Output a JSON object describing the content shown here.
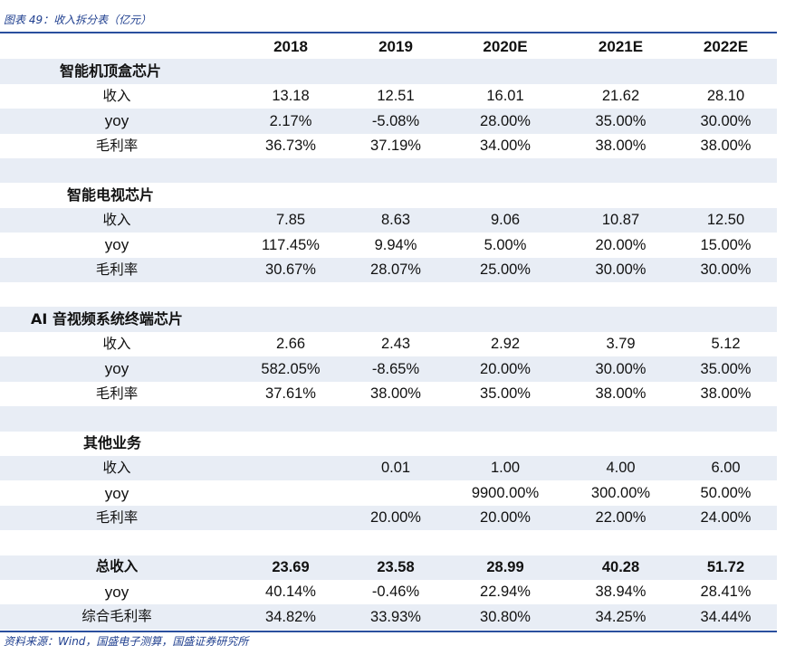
{
  "caption": "图表 49：收入拆分表（亿元）",
  "columns": [
    "",
    "2018",
    "2019",
    "2020E",
    "2021E",
    "2022E"
  ],
  "rows": [
    {
      "type": "section",
      "label": "智能机顶盒芯片",
      "values": [
        "",
        "",
        "",
        "",
        ""
      ]
    },
    {
      "type": "data",
      "label": "收入",
      "values": [
        "13.18",
        "12.51",
        "16.01",
        "21.62",
        "28.10"
      ]
    },
    {
      "type": "data",
      "label": "yoy",
      "values": [
        "2.17%",
        "-5.08%",
        "28.00%",
        "35.00%",
        "30.00%"
      ]
    },
    {
      "type": "data",
      "label": "毛利率",
      "values": [
        "36.73%",
        "37.19%",
        "34.00%",
        "38.00%",
        "38.00%"
      ]
    },
    {
      "type": "spacer",
      "label": "",
      "values": [
        "",
        "",
        "",
        "",
        ""
      ]
    },
    {
      "type": "section",
      "label": "智能电视芯片",
      "values": [
        "",
        "",
        "",
        "",
        ""
      ]
    },
    {
      "type": "data",
      "label": "收入",
      "values": [
        "7.85",
        "8.63",
        "9.06",
        "10.87",
        "12.50"
      ]
    },
    {
      "type": "data",
      "label": "yoy",
      "values": [
        "117.45%",
        "9.94%",
        "5.00%",
        "20.00%",
        "15.00%"
      ]
    },
    {
      "type": "data",
      "label": "毛利率",
      "values": [
        "30.67%",
        "28.07%",
        "25.00%",
        "30.00%",
        "30.00%"
      ]
    },
    {
      "type": "spacer",
      "label": "",
      "values": [
        "",
        "",
        "",
        "",
        ""
      ]
    },
    {
      "type": "section",
      "label": "AI 音视频系统终端芯片",
      "values": [
        "",
        "",
        "",
        "",
        ""
      ]
    },
    {
      "type": "data",
      "label": "收入",
      "values": [
        "2.66",
        "2.43",
        "2.92",
        "3.79",
        "5.12"
      ]
    },
    {
      "type": "data",
      "label": "yoy",
      "values": [
        "582.05%",
        "-8.65%",
        "20.00%",
        "30.00%",
        "35.00%"
      ]
    },
    {
      "type": "data",
      "label": "毛利率",
      "values": [
        "37.61%",
        "38.00%",
        "35.00%",
        "38.00%",
        "38.00%"
      ]
    },
    {
      "type": "spacer",
      "label": "",
      "values": [
        "",
        "",
        "",
        "",
        ""
      ]
    },
    {
      "type": "section",
      "label": "其他业务",
      "values": [
        "",
        "",
        "",
        "",
        ""
      ]
    },
    {
      "type": "data",
      "label": "收入",
      "values": [
        "",
        "0.01",
        "1.00",
        "4.00",
        "6.00"
      ]
    },
    {
      "type": "data",
      "label": "yoy",
      "values": [
        "",
        "",
        "9900.00%",
        "300.00%",
        "50.00%"
      ]
    },
    {
      "type": "data",
      "label": "毛利率",
      "values": [
        "",
        "20.00%",
        "20.00%",
        "22.00%",
        "24.00%"
      ]
    },
    {
      "type": "spacer",
      "label": "",
      "values": [
        "",
        "",
        "",
        "",
        ""
      ]
    },
    {
      "type": "total",
      "label": "总收入",
      "values": [
        "23.69",
        "23.58",
        "28.99",
        "40.28",
        "51.72"
      ]
    },
    {
      "type": "data",
      "label": "yoy",
      "values": [
        "40.14%",
        "-0.46%",
        "22.94%",
        "38.94%",
        "28.41%"
      ]
    },
    {
      "type": "data",
      "label": "综合毛利率",
      "values": [
        "34.82%",
        "33.93%",
        "30.80%",
        "34.25%",
        "34.44%"
      ]
    }
  ],
  "source": "资料来源：Wind，国盛电子测算，国盛证券研究所",
  "colors": {
    "accent": "#2a4f9e",
    "shade": "#e8edf5",
    "caption": "#1f3f8f"
  }
}
